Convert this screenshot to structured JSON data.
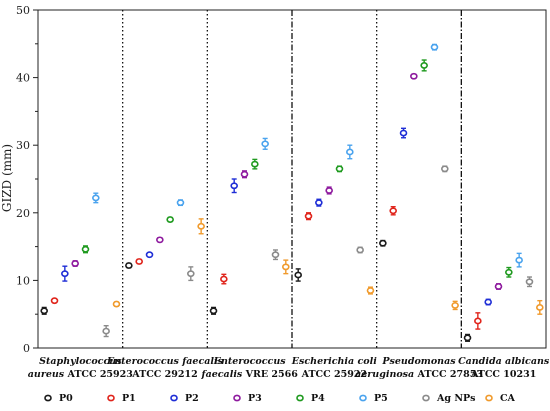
{
  "chart_data": {
    "type": "scatter",
    "ylabel": "GIZD (mm)",
    "xlabel": "",
    "ylim": [
      0,
      50
    ],
    "yticks": [
      0,
      10,
      20,
      30,
      40,
      50
    ],
    "grid": false,
    "legend_position": "bottom",
    "categories": [
      {
        "lines": [
          {
            "italic": "Staphylococcus",
            "rest": ""
          },
          {
            "italic": "aureus",
            "rest": " ATCC 25923"
          }
        ]
      },
      {
        "lines": [
          {
            "italic": "Enterococcus faecalis",
            "rest": ""
          },
          {
            "italic": "",
            "rest": "ATCC 29212"
          }
        ]
      },
      {
        "lines": [
          {
            "italic": "Enterococcus",
            "rest": ""
          },
          {
            "italic": "faecalis",
            "rest": " VRE 2566"
          }
        ]
      },
      {
        "lines": [
          {
            "italic": "Escherichia coli",
            "rest": ""
          },
          {
            "italic": "",
            "rest": "ATCC 25922"
          }
        ]
      },
      {
        "lines": [
          {
            "italic": "Pseudomonas",
            "rest": ""
          },
          {
            "italic": "aeruginosa",
            "rest": " ATCC 27853"
          }
        ]
      },
      {
        "lines": [
          {
            "italic": "Candida albicans",
            "rest": ""
          },
          {
            "italic": "",
            "rest": "ATCC 10231"
          }
        ]
      }
    ],
    "dividers": [
      {
        "after": 1,
        "style": "dotted"
      },
      {
        "after": 2,
        "style": "dotted"
      },
      {
        "after": 3,
        "style": "dashdot"
      },
      {
        "after": 4,
        "style": "dotted"
      },
      {
        "after": 5,
        "style": "dashdot"
      }
    ],
    "series": [
      {
        "name": "P0",
        "color": "#1a1a1a",
        "values": [
          5.5,
          12.2,
          5.5,
          10.8,
          15.5,
          1.5
        ],
        "errors": [
          0.5,
          0.3,
          0.5,
          0.9,
          0.4,
          0.5
        ]
      },
      {
        "name": "P1",
        "color": "#e0241b",
        "values": [
          7.0,
          12.8,
          10.2,
          19.5,
          20.3,
          4.0
        ],
        "errors": [
          0.3,
          0.3,
          0.7,
          0.5,
          0.6,
          1.2
        ]
      },
      {
        "name": "P2",
        "color": "#1f2ed6",
        "values": [
          11.0,
          13.8,
          24.0,
          21.5,
          31.8,
          6.8
        ],
        "errors": [
          1.1,
          0.3,
          1.0,
          0.5,
          0.7,
          0.4
        ]
      },
      {
        "name": "P3",
        "color": "#8e1a9e",
        "values": [
          12.5,
          16.0,
          25.7,
          23.3,
          40.2,
          9.1
        ],
        "errors": [
          0.4,
          0.3,
          0.5,
          0.5,
          0.3,
          0.4
        ]
      },
      {
        "name": "P4",
        "color": "#1f9a1f",
        "values": [
          14.6,
          19.0,
          27.2,
          26.5,
          41.8,
          11.2
        ],
        "errors": [
          0.5,
          0.3,
          0.7,
          0.4,
          0.8,
          0.7
        ]
      },
      {
        "name": "P5",
        "color": "#4aa3ee",
        "values": [
          22.2,
          21.5,
          30.2,
          29.0,
          44.5,
          13.0
        ],
        "errors": [
          0.7,
          0.4,
          0.8,
          1.0,
          0.4,
          1.0
        ]
      },
      {
        "name": "Ag NPs",
        "color": "#8a8a8a",
        "values": [
          2.5,
          11.0,
          13.8,
          14.5,
          26.5,
          9.8
        ],
        "errors": [
          0.8,
          1.0,
          0.7,
          0.4,
          0.4,
          0.7
        ]
      },
      {
        "name": "CA",
        "color": "#f09a2c",
        "values": [
          6.5,
          18.0,
          12.0,
          8.5,
          6.3,
          6.0
        ],
        "errors": [
          0.3,
          1.1,
          1.0,
          0.5,
          0.6,
          1.0
        ]
      }
    ]
  }
}
